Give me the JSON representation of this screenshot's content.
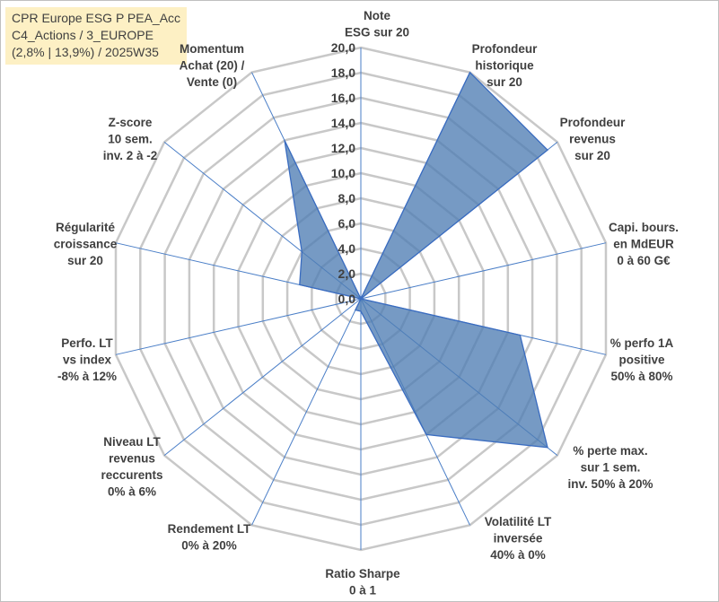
{
  "title_lines": [
    "CPR Europe ESG P PEA_Acc",
    "C4_Actions / 3_EUROPE",
    "(2,8% | 13,9%) / 2025W35"
  ],
  "chart_data": {
    "type": "radar",
    "rlim": [
      0,
      20
    ],
    "ticks": [
      "0,0",
      "2,0",
      "4,0",
      "6,0",
      "8,0",
      "10,0",
      "12,0",
      "14,0",
      "16,0",
      "18,0",
      "20,0"
    ],
    "grid": true,
    "axes": [
      {
        "label": [
          "Note",
          "ESG sur 20"
        ],
        "value": 0
      },
      {
        "label": [
          "Profondeur",
          "historique",
          "sur 20"
        ],
        "value": 20
      },
      {
        "label": [
          "Profondeur",
          "revenus",
          "sur 20"
        ],
        "value": 19
      },
      {
        "label": [
          "Capi. bours.",
          "en MdEUR",
          "0 à 60 G€"
        ],
        "value": 0
      },
      {
        "label": [
          "% perfo 1A",
          "positive",
          "50% à 80%"
        ],
        "value": 13
      },
      {
        "label": [
          "% perte max.",
          "sur 1 sem.",
          "inv. 50% à 20%"
        ],
        "value": 19
      },
      {
        "label": [
          "Volatilité LT",
          "inversée",
          "40% à 0%"
        ],
        "value": 12
      },
      {
        "label": [
          "Ratio Sharpe",
          "0 à 1"
        ],
        "value": 1
      },
      {
        "label": [
          "Rendement LT",
          "0% à 20%"
        ],
        "value": 1
      },
      {
        "label": [
          "Niveau LT",
          "revenus",
          "reccurents",
          "0% à 6%"
        ],
        "value": 0
      },
      {
        "label": [
          "Perfo. LT",
          "vs index",
          "-8% à 12%"
        ],
        "value": 0
      },
      {
        "label": [
          "Régularité",
          "croissance",
          "sur 20"
        ],
        "value": 5
      },
      {
        "label": [
          "Z-score",
          "10 sem.",
          "inv. 2 à -2"
        ],
        "value": 6
      },
      {
        "label": [
          "Momentum",
          "Achat (20) /",
          "Vente (0)"
        ],
        "value": 14
      }
    ],
    "colors": {
      "series_fill": "#4f7db3",
      "grid": "#c8c8c8",
      "spokes": "#4a7ec7",
      "text": "#404040"
    }
  }
}
